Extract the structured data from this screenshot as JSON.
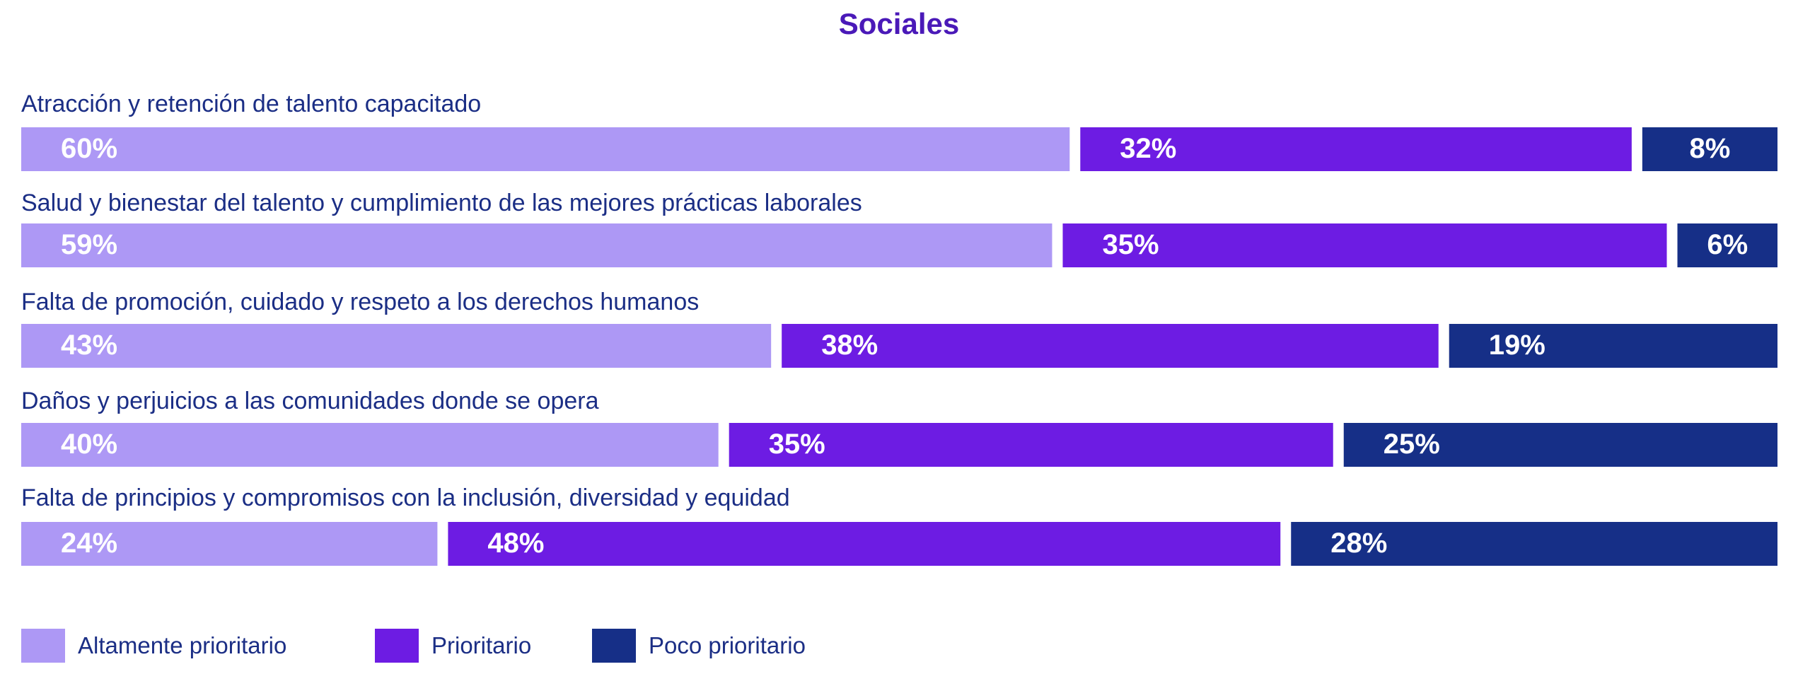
{
  "chart_data": {
    "type": "bar",
    "stacked": true,
    "orientation": "horizontal",
    "title": "Sociales",
    "categories": [
      "Atracción y retención de talento capacitado",
      "Salud y bienestar del talento y cumplimiento de las mejores prácticas laborales",
      "Falta de promoción, cuidado y respeto a los derechos humanos",
      "Daños y perjuicios a las comunidades donde se opera",
      "Falta de principios y compromisos con la inclusión, diversidad y equidad"
    ],
    "series": [
      {
        "name": "Altamente prioritario",
        "values": [
          60,
          59,
          43,
          40,
          24
        ],
        "labels": [
          "60%",
          "59%",
          "43%",
          "40%",
          "24%"
        ],
        "color": "#ad98f5"
      },
      {
        "name": "Prioritario",
        "values": [
          32,
          35,
          38,
          35,
          48
        ],
        "labels": [
          "32%",
          "35%",
          "38%",
          "35%",
          "48%"
        ],
        "color": "#6d1ce3"
      },
      {
        "name": "Poco prioritario",
        "values": [
          8,
          6,
          19,
          25,
          28
        ],
        "labels": [
          "8%",
          "6%",
          "19%",
          "25%",
          "28%"
        ],
        "color": "#162f87"
      }
    ],
    "legend_position": "bottom-left",
    "xlim": [
      0,
      100
    ],
    "grid": false
  },
  "colors": {
    "title": "#4a19b8",
    "category_label": "#1b2e85",
    "value_label": "#ffffff"
  }
}
